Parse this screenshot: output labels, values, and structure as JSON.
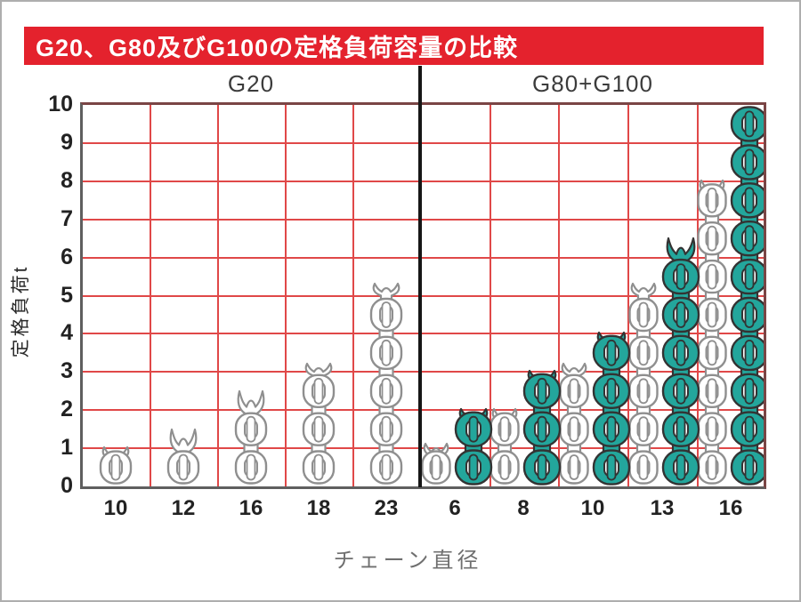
{
  "title": {
    "text": "G20、G80及びG100の定格負荷容量の比較"
  },
  "colors": {
    "banner_bg": "#e4222d",
    "banner_fg": "#ffffff",
    "grid_red": "#e04848",
    "frame_gray": "#5f5f5f",
    "frame_maroon": "#7a4545",
    "divider_black": "#161616",
    "chain_white_fill": "#ffffff",
    "chain_white_line": "#8f8f8f",
    "chain_teal_fill": "#23a69c",
    "chain_teal_line": "#333333",
    "tick_color": "#222222",
    "xlabel_color": "#6f6f6f",
    "section_label_color": "#3c3c3c"
  },
  "chart_data": {
    "type": "bar",
    "bar_style": "chain-link-pictogram",
    "title": "G20、G80及びG100の定格負荷容量の比較",
    "xlabel": "チェーン直径",
    "ylabel": "定格負荷t",
    "ylim": [
      0,
      10
    ],
    "yticks": [
      0,
      1,
      2,
      3,
      4,
      5,
      6,
      7,
      8,
      9,
      10
    ],
    "grid": true,
    "grid_color": "#e04848",
    "legend_position": "none",
    "sections": [
      {
        "label": "G20",
        "categories": [
          "10",
          "12",
          "16",
          "18",
          "23"
        ],
        "series": [
          {
            "name": "G20",
            "chain_color": "white",
            "values": [
              1.0,
              1.5,
              2.5,
              3.2,
              5.3
            ]
          }
        ]
      },
      {
        "label": "G80+G100",
        "categories": [
          "6",
          "8",
          "10",
          "13",
          "16"
        ],
        "series": [
          {
            "name": "G80",
            "chain_color": "white",
            "values": [
              1.1,
              2.0,
              3.2,
              5.3,
              8.0
            ]
          },
          {
            "name": "G100",
            "chain_color": "teal",
            "values": [
              2.0,
              3.0,
              4.0,
              6.5,
              10.0
            ]
          }
        ]
      }
    ]
  }
}
